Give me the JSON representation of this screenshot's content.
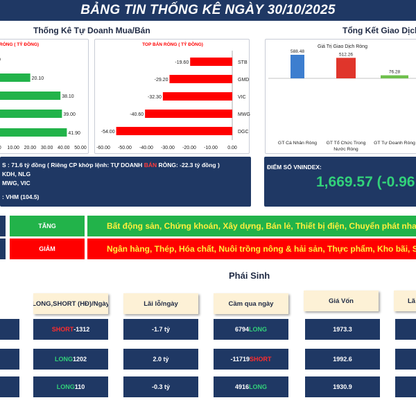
{
  "header": {
    "title": "BẢNG TIN THỐNG KÊ NGÀY 30/10/2025"
  },
  "colors": {
    "navy": "#1f3864",
    "green": "#22b34a",
    "red": "#ff0000",
    "blue_bar": "#3d7ecf",
    "red_bar": "#e0352b",
    "green_bar": "#6fc04d",
    "cream": "#fdf1d6"
  },
  "left_section": {
    "title": "Thống Kê Tự Doanh Mua/Bán"
  },
  "right_section": {
    "title": "Tổng Kết Giao Dịch"
  },
  "chart_data": [
    {
      "type": "bar",
      "orientation": "horizontal",
      "title": "RÒNG ( TỶ ĐỒNG)",
      "values": [
        0,
        20.1,
        38.1,
        39.0,
        41.9
      ],
      "value_labels": [
        "0",
        "20.10",
        "38.10",
        "39.00",
        "41.90"
      ],
      "xticks": [
        "0.00",
        "10.00",
        "20.00",
        "30.00",
        "40.00",
        "50.00"
      ],
      "xlim": [
        0,
        50
      ],
      "color": "#22b34a"
    },
    {
      "type": "bar",
      "orientation": "horizontal",
      "title": "TOP BÁN RÒNG ( TỶ ĐỒNG)",
      "categories": [
        "STB",
        "GMD",
        "VIC",
        "MWG",
        "DGC"
      ],
      "values": [
        -19.6,
        -29.2,
        -32.3,
        -40.6,
        -54.0
      ],
      "value_labels": [
        "-19.60",
        "-29.20",
        "-32.30",
        "-40.60",
        "-54.00"
      ],
      "xticks": [
        "-60.00",
        "-50.00",
        "-40.00",
        "-30.00",
        "-20.00",
        "-10.00",
        "0.00"
      ],
      "xlim": [
        -60,
        0
      ],
      "color": "#ff0000"
    },
    {
      "type": "bar",
      "title": "Giá Trị Giao Dịch Ròng",
      "categories": [
        "GT Cá Nhân Ròng",
        "GT Tổ Chức Trong Nước Ròng",
        "GT Tự Doanh Ròng"
      ],
      "values": [
        588.48,
        512.26,
        76.28
      ],
      "value_labels": [
        "588.48",
        "512.26",
        "76.28"
      ],
      "colors": [
        "#3d7ecf",
        "#e0352b",
        "#6fc04d"
      ]
    }
  ],
  "left_info": {
    "line1_pre": "S : 71.6 tỷ đồng ( Riêng CP khớp lệnh: TỰ DOANH ",
    "line1_red": "BÁN",
    "line1_post": " RÒNG: -22.3 tỷ đồng )",
    "line2": "KDH, NLG",
    "line3": "MWG, VIC",
    "line4": ": VHM (104.5)"
  },
  "vnindex": {
    "label": "ĐIỂM SỐ VNINDEX:",
    "value": "1,669.57 (-0.96"
  },
  "sectors": {
    "up_label": "TĂNG",
    "up_text": "Bất động sản, Chứng khoán, Xây dựng, Bán lẻ, Thiết bị điện, Chuyển phát nhanh, Viễn",
    "down_label": "GIẢM",
    "down_text": "Ngân hàng, Thép, Hóa chất, Nuôi trồng nông & hải sản, Thực phẩm, Kho bãi, Sản xuất &"
  },
  "derivatives": {
    "title": "Phái Sinh",
    "headers": [
      "LONG,SHORT (HĐ)/Ngày",
      "Lãi lỗ/ngày",
      "Cầm qua ngày",
      "Giá Vốn",
      "Lã"
    ],
    "rows": [
      {
        "pos_side": "SHORT",
        "pos_num": " -1312",
        "pnl": "-1.7 tỷ",
        "hold_num": "6794 ",
        "hold_side": "LONG",
        "cost": "1973.3"
      },
      {
        "pos_side": "LONG",
        "pos_num": " 1202",
        "pnl": "2.0 tỷ",
        "hold_num": "-11719 ",
        "hold_side": "SHORT",
        "cost": "1992.6"
      },
      {
        "pos_side": "LONG",
        "pos_num": " 110",
        "pnl": "-0.3 tỷ",
        "hold_num": "4916 ",
        "hold_side": "LONG",
        "cost": "1930.9"
      }
    ]
  }
}
